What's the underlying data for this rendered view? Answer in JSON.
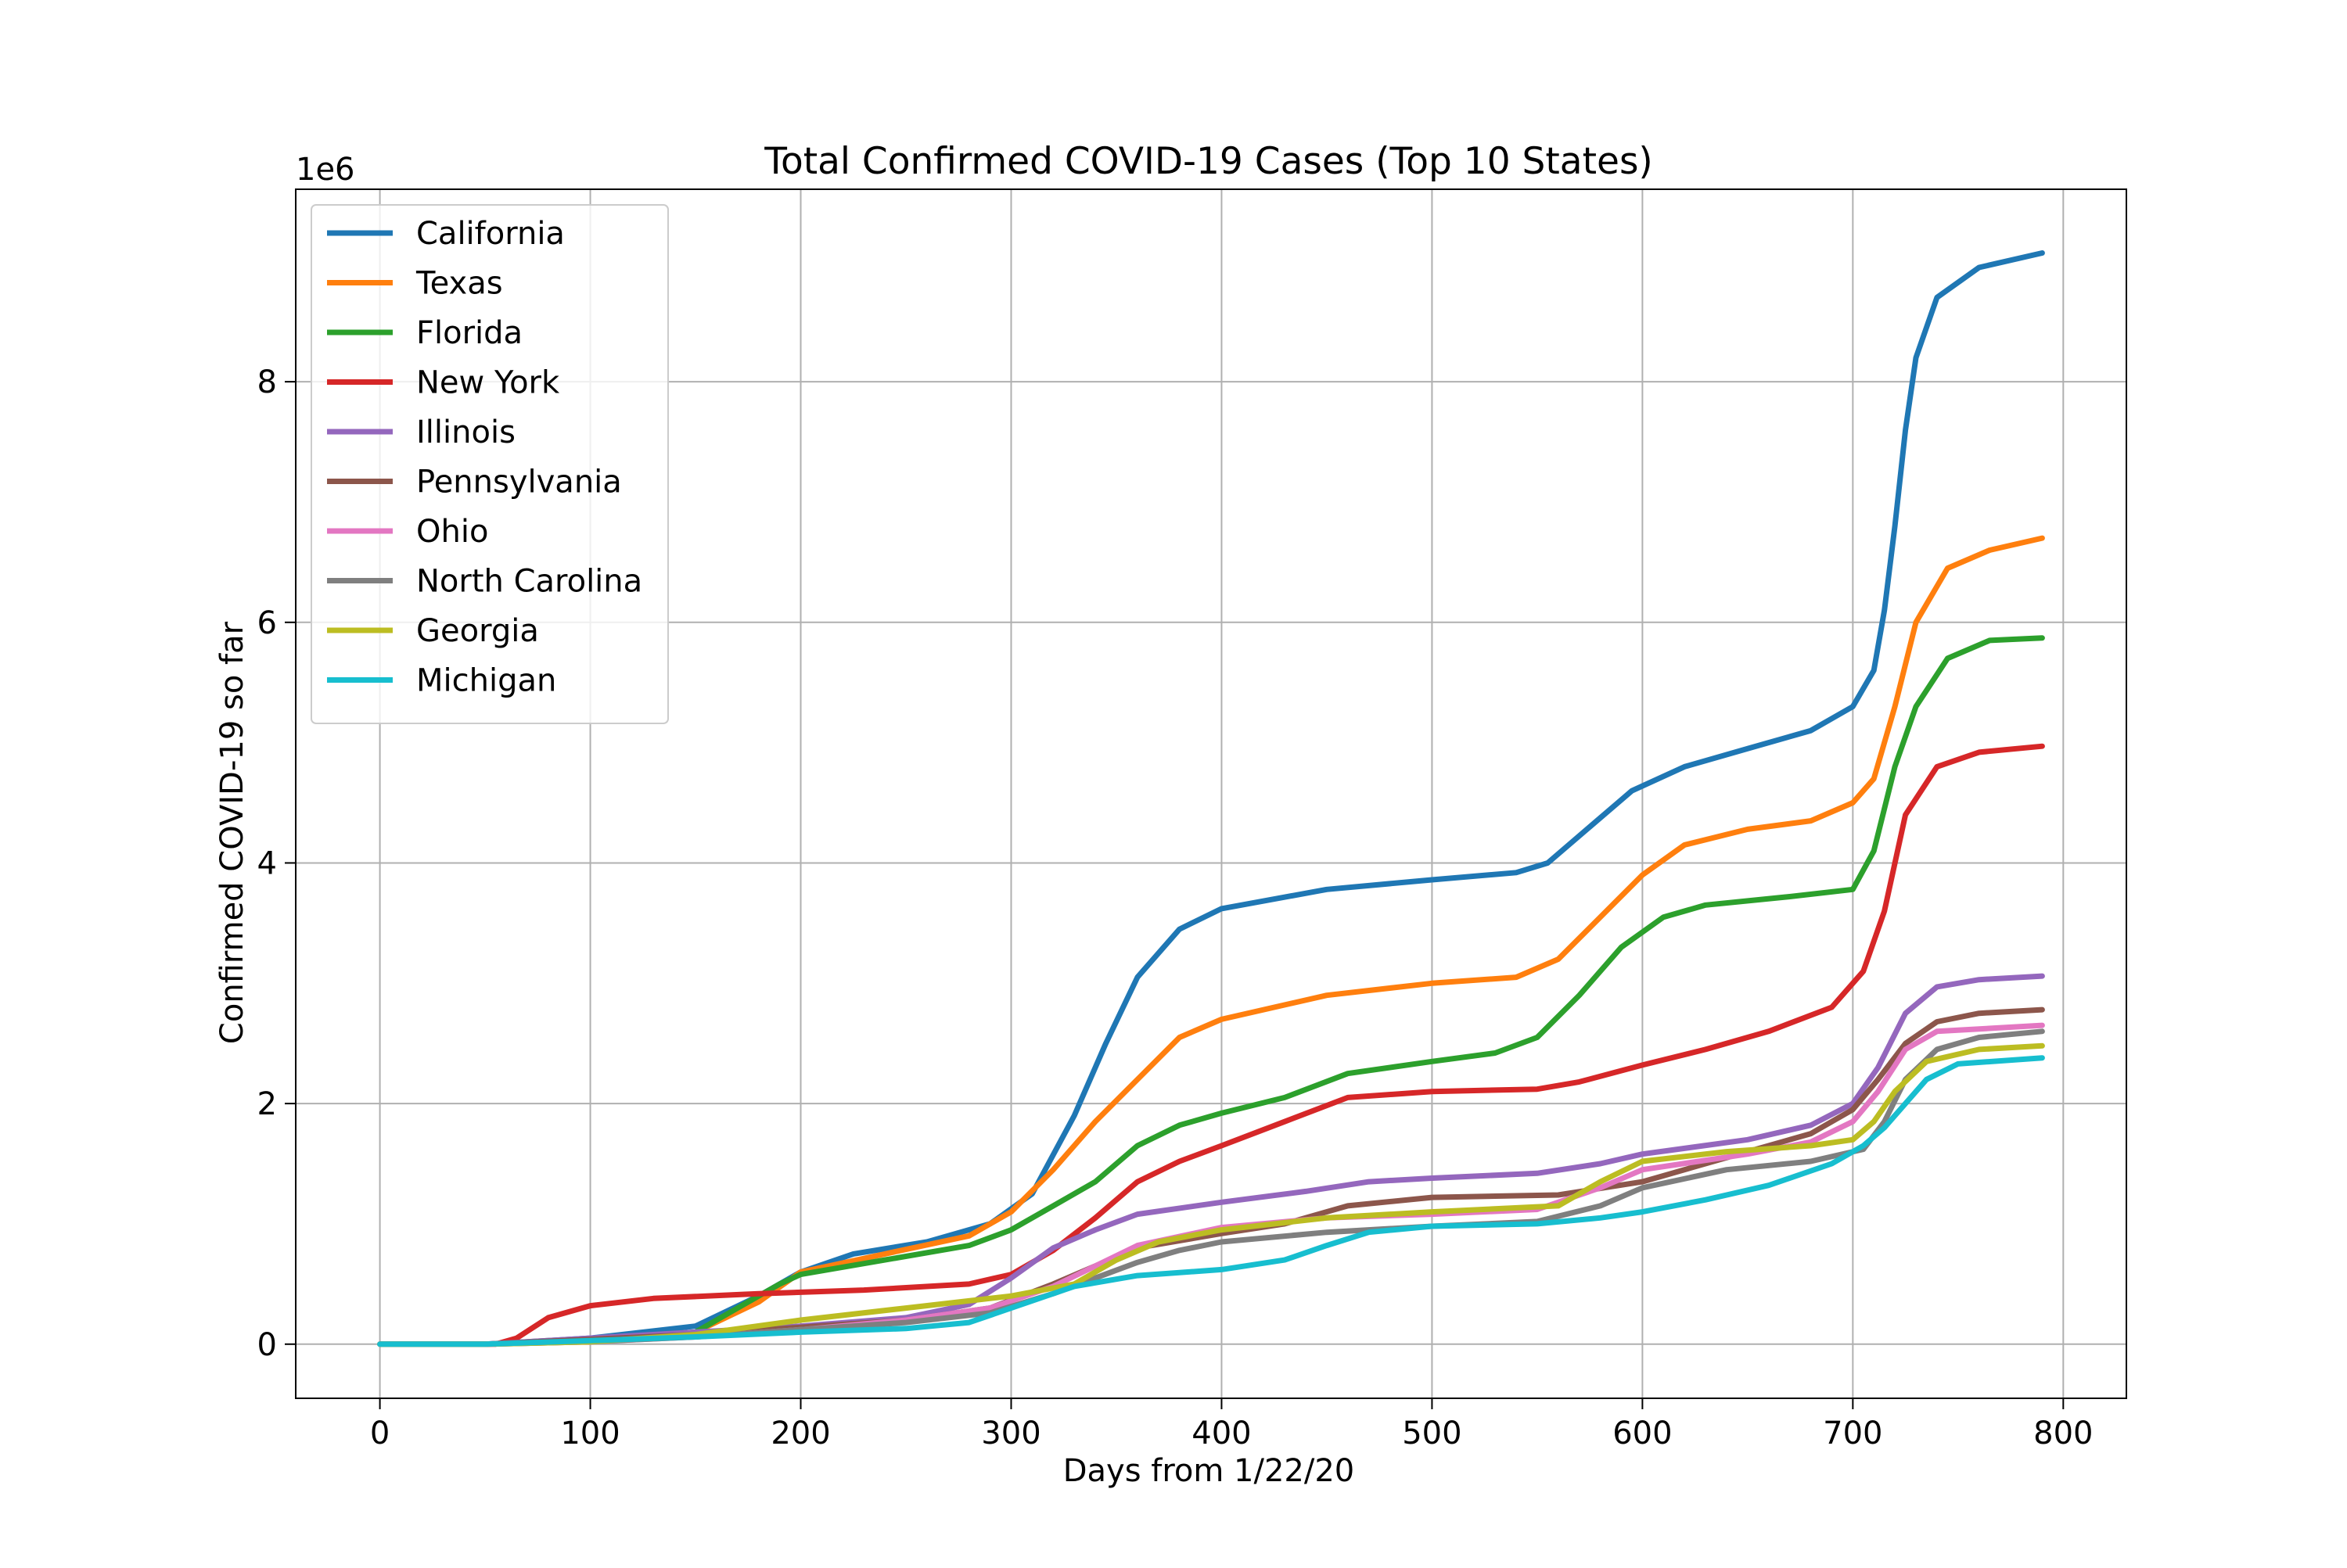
{
  "chart_data": {
    "type": "line",
    "title": "Total Confirmed COVID-19 Cases (Top 10 States)",
    "xlabel": "Days from 1/22/20",
    "ylabel": "Confirmed COVID-19 so far",
    "y_offset_label": "1e6",
    "xlim": [
      -40,
      830
    ],
    "ylim": [
      -0.45,
      9.6
    ],
    "x_ticks": [
      0,
      100,
      200,
      300,
      400,
      500,
      600,
      700,
      800
    ],
    "x_tick_labels": [
      "0",
      "100",
      "200",
      "300",
      "400",
      "500",
      "600",
      "700",
      "800"
    ],
    "y_ticks": [
      0,
      2,
      4,
      6,
      8
    ],
    "y_tick_labels": [
      "0",
      "2",
      "4",
      "6",
      "8"
    ],
    "y_unit": "millions (1e6)",
    "grid": true,
    "legend_position": "top-left",
    "series": [
      {
        "name": "California",
        "color": "#1f77b4",
        "points": [
          [
            0,
            0
          ],
          [
            50,
            0
          ],
          [
            100,
            0.05
          ],
          [
            150,
            0.15
          ],
          [
            180,
            0.4
          ],
          [
            200,
            0.6
          ],
          [
            225,
            0.75
          ],
          [
            260,
            0.85
          ],
          [
            290,
            1.0
          ],
          [
            310,
            1.25
          ],
          [
            330,
            1.9
          ],
          [
            345,
            2.5
          ],
          [
            360,
            3.05
          ],
          [
            380,
            3.45
          ],
          [
            400,
            3.62
          ],
          [
            450,
            3.78
          ],
          [
            500,
            3.86
          ],
          [
            540,
            3.92
          ],
          [
            555,
            4.0
          ],
          [
            575,
            4.3
          ],
          [
            595,
            4.6
          ],
          [
            620,
            4.8
          ],
          [
            650,
            4.95
          ],
          [
            680,
            5.1
          ],
          [
            700,
            5.3
          ],
          [
            710,
            5.6
          ],
          [
            715,
            6.1
          ],
          [
            720,
            6.8
          ],
          [
            725,
            7.6
          ],
          [
            730,
            8.2
          ],
          [
            740,
            8.7
          ],
          [
            760,
            8.95
          ],
          [
            790,
            9.07
          ]
        ]
      },
      {
        "name": "Texas",
        "color": "#ff7f0e",
        "points": [
          [
            0,
            0
          ],
          [
            50,
            0
          ],
          [
            100,
            0.03
          ],
          [
            150,
            0.1
          ],
          [
            180,
            0.35
          ],
          [
            200,
            0.6
          ],
          [
            240,
            0.75
          ],
          [
            280,
            0.9
          ],
          [
            300,
            1.1
          ],
          [
            320,
            1.45
          ],
          [
            340,
            1.85
          ],
          [
            360,
            2.2
          ],
          [
            380,
            2.55
          ],
          [
            400,
            2.7
          ],
          [
            450,
            2.9
          ],
          [
            500,
            3.0
          ],
          [
            540,
            3.05
          ],
          [
            560,
            3.2
          ],
          [
            580,
            3.55
          ],
          [
            600,
            3.9
          ],
          [
            620,
            4.15
          ],
          [
            650,
            4.28
          ],
          [
            680,
            4.35
          ],
          [
            700,
            4.5
          ],
          [
            710,
            4.7
          ],
          [
            720,
            5.3
          ],
          [
            730,
            6.0
          ],
          [
            745,
            6.45
          ],
          [
            765,
            6.6
          ],
          [
            790,
            6.7
          ]
        ]
      },
      {
        "name": "Florida",
        "color": "#2ca02c",
        "points": [
          [
            0,
            0
          ],
          [
            50,
            0
          ],
          [
            100,
            0.03
          ],
          [
            150,
            0.1
          ],
          [
            170,
            0.3
          ],
          [
            190,
            0.5
          ],
          [
            200,
            0.58
          ],
          [
            240,
            0.7
          ],
          [
            280,
            0.82
          ],
          [
            300,
            0.95
          ],
          [
            320,
            1.15
          ],
          [
            340,
            1.35
          ],
          [
            360,
            1.65
          ],
          [
            380,
            1.82
          ],
          [
            400,
            1.92
          ],
          [
            430,
            2.05
          ],
          [
            460,
            2.25
          ],
          [
            500,
            2.35
          ],
          [
            530,
            2.42
          ],
          [
            550,
            2.55
          ],
          [
            570,
            2.9
          ],
          [
            590,
            3.3
          ],
          [
            610,
            3.55
          ],
          [
            630,
            3.65
          ],
          [
            670,
            3.72
          ],
          [
            700,
            3.78
          ],
          [
            710,
            4.1
          ],
          [
            720,
            4.8
          ],
          [
            730,
            5.3
          ],
          [
            745,
            5.7
          ],
          [
            765,
            5.85
          ],
          [
            790,
            5.87
          ]
        ]
      },
      {
        "name": "New York",
        "color": "#d62728",
        "points": [
          [
            0,
            0
          ],
          [
            55,
            0
          ],
          [
            65,
            0.05
          ],
          [
            80,
            0.22
          ],
          [
            100,
            0.32
          ],
          [
            130,
            0.38
          ],
          [
            180,
            0.42
          ],
          [
            230,
            0.45
          ],
          [
            280,
            0.5
          ],
          [
            300,
            0.58
          ],
          [
            320,
            0.78
          ],
          [
            340,
            1.05
          ],
          [
            360,
            1.35
          ],
          [
            380,
            1.52
          ],
          [
            400,
            1.65
          ],
          [
            430,
            1.85
          ],
          [
            460,
            2.05
          ],
          [
            500,
            2.1
          ],
          [
            550,
            2.12
          ],
          [
            570,
            2.18
          ],
          [
            600,
            2.32
          ],
          [
            630,
            2.45
          ],
          [
            660,
            2.6
          ],
          [
            690,
            2.8
          ],
          [
            705,
            3.1
          ],
          [
            715,
            3.6
          ],
          [
            725,
            4.4
          ],
          [
            740,
            4.8
          ],
          [
            760,
            4.92
          ],
          [
            790,
            4.97
          ]
        ]
      },
      {
        "name": "Illinois",
        "color": "#9467bd",
        "points": [
          [
            0,
            0
          ],
          [
            50,
            0
          ],
          [
            100,
            0.05
          ],
          [
            150,
            0.1
          ],
          [
            200,
            0.15
          ],
          [
            250,
            0.22
          ],
          [
            280,
            0.33
          ],
          [
            300,
            0.55
          ],
          [
            320,
            0.8
          ],
          [
            340,
            0.95
          ],
          [
            360,
            1.08
          ],
          [
            400,
            1.18
          ],
          [
            440,
            1.27
          ],
          [
            470,
            1.35
          ],
          [
            500,
            1.38
          ],
          [
            550,
            1.42
          ],
          [
            580,
            1.5
          ],
          [
            600,
            1.58
          ],
          [
            650,
            1.7
          ],
          [
            680,
            1.82
          ],
          [
            700,
            2.0
          ],
          [
            712,
            2.3
          ],
          [
            725,
            2.75
          ],
          [
            740,
            2.97
          ],
          [
            760,
            3.03
          ],
          [
            790,
            3.06
          ]
        ]
      },
      {
        "name": "Pennsylvania",
        "color": "#8c564b",
        "points": [
          [
            0,
            0
          ],
          [
            50,
            0
          ],
          [
            100,
            0.04
          ],
          [
            150,
            0.08
          ],
          [
            200,
            0.14
          ],
          [
            250,
            0.2
          ],
          [
            290,
            0.3
          ],
          [
            320,
            0.5
          ],
          [
            340,
            0.65
          ],
          [
            360,
            0.8
          ],
          [
            400,
            0.92
          ],
          [
            430,
            1.0
          ],
          [
            460,
            1.15
          ],
          [
            500,
            1.22
          ],
          [
            560,
            1.24
          ],
          [
            600,
            1.35
          ],
          [
            640,
            1.55
          ],
          [
            680,
            1.75
          ],
          [
            700,
            1.95
          ],
          [
            712,
            2.2
          ],
          [
            725,
            2.5
          ],
          [
            740,
            2.68
          ],
          [
            760,
            2.75
          ],
          [
            790,
            2.78
          ]
        ]
      },
      {
        "name": "Ohio",
        "color": "#e377c2",
        "points": [
          [
            0,
            0
          ],
          [
            50,
            0
          ],
          [
            100,
            0.02
          ],
          [
            150,
            0.06
          ],
          [
            200,
            0.12
          ],
          [
            250,
            0.2
          ],
          [
            290,
            0.3
          ],
          [
            320,
            0.48
          ],
          [
            340,
            0.65
          ],
          [
            360,
            0.82
          ],
          [
            400,
            0.97
          ],
          [
            450,
            1.05
          ],
          [
            500,
            1.08
          ],
          [
            550,
            1.12
          ],
          [
            580,
            1.3
          ],
          [
            600,
            1.45
          ],
          [
            650,
            1.58
          ],
          [
            680,
            1.68
          ],
          [
            700,
            1.85
          ],
          [
            712,
            2.1
          ],
          [
            725,
            2.45
          ],
          [
            740,
            2.6
          ],
          [
            790,
            2.65
          ]
        ]
      },
      {
        "name": "North Carolina",
        "color": "#7f7f7f",
        "points": [
          [
            0,
            0
          ],
          [
            50,
            0
          ],
          [
            100,
            0.02
          ],
          [
            150,
            0.06
          ],
          [
            200,
            0.12
          ],
          [
            250,
            0.18
          ],
          [
            290,
            0.26
          ],
          [
            320,
            0.42
          ],
          [
            340,
            0.55
          ],
          [
            360,
            0.68
          ],
          [
            380,
            0.78
          ],
          [
            400,
            0.85
          ],
          [
            450,
            0.93
          ],
          [
            500,
            0.98
          ],
          [
            550,
            1.02
          ],
          [
            580,
            1.15
          ],
          [
            600,
            1.3
          ],
          [
            640,
            1.45
          ],
          [
            680,
            1.52
          ],
          [
            705,
            1.62
          ],
          [
            715,
            1.85
          ],
          [
            725,
            2.2
          ],
          [
            740,
            2.45
          ],
          [
            760,
            2.55
          ],
          [
            790,
            2.6
          ]
        ]
      },
      {
        "name": "Georgia",
        "color": "#bcbd22",
        "points": [
          [
            0,
            0
          ],
          [
            50,
            0
          ],
          [
            100,
            0.02
          ],
          [
            150,
            0.08
          ],
          [
            200,
            0.2
          ],
          [
            250,
            0.3
          ],
          [
            300,
            0.4
          ],
          [
            330,
            0.5
          ],
          [
            350,
            0.7
          ],
          [
            370,
            0.85
          ],
          [
            400,
            0.95
          ],
          [
            450,
            1.05
          ],
          [
            500,
            1.1
          ],
          [
            560,
            1.15
          ],
          [
            580,
            1.35
          ],
          [
            600,
            1.52
          ],
          [
            640,
            1.6
          ],
          [
            680,
            1.65
          ],
          [
            700,
            1.7
          ],
          [
            710,
            1.85
          ],
          [
            720,
            2.1
          ],
          [
            735,
            2.35
          ],
          [
            760,
            2.45
          ],
          [
            790,
            2.48
          ]
        ]
      },
      {
        "name": "Michigan",
        "color": "#17becf",
        "points": [
          [
            0,
            0
          ],
          [
            50,
            0
          ],
          [
            100,
            0.03
          ],
          [
            150,
            0.06
          ],
          [
            200,
            0.1
          ],
          [
            250,
            0.13
          ],
          [
            280,
            0.18
          ],
          [
            300,
            0.3
          ],
          [
            330,
            0.48
          ],
          [
            360,
            0.57
          ],
          [
            400,
            0.62
          ],
          [
            430,
            0.7
          ],
          [
            450,
            0.82
          ],
          [
            470,
            0.93
          ],
          [
            500,
            0.98
          ],
          [
            550,
            1.0
          ],
          [
            580,
            1.05
          ],
          [
            600,
            1.1
          ],
          [
            630,
            1.2
          ],
          [
            660,
            1.32
          ],
          [
            690,
            1.5
          ],
          [
            705,
            1.65
          ],
          [
            715,
            1.8
          ],
          [
            725,
            2.0
          ],
          [
            735,
            2.2
          ],
          [
            750,
            2.33
          ],
          [
            790,
            2.38
          ]
        ]
      }
    ]
  }
}
